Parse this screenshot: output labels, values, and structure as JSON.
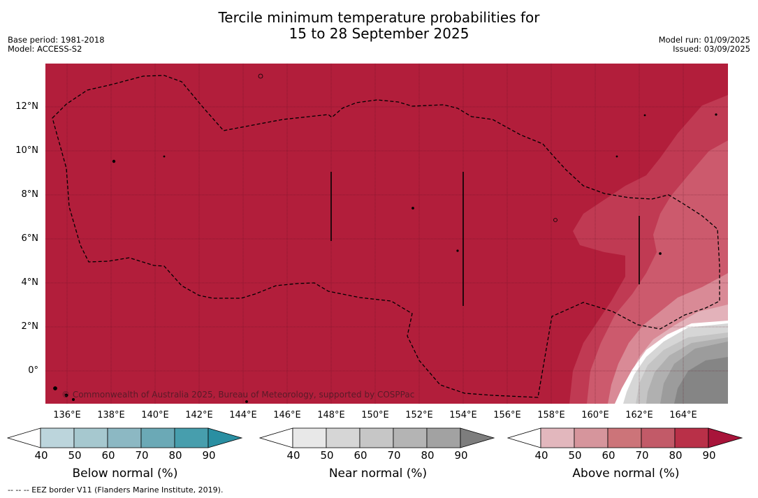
{
  "header": {
    "title_line1": "Tercile minimum temperature probabilities for",
    "title_line2": "15 to 28 September 2025",
    "base_period": "Base period: 1981-2018",
    "model": "Model: ACCESS-S2",
    "model_run": "Model run: 01/09/2025",
    "issued": "Issued: 03/09/2025"
  },
  "map": {
    "lat_labels": [
      "12°N",
      "10°N",
      "8°N",
      "6°N",
      "4°N",
      "2°N",
      "0°"
    ],
    "lon_labels": [
      "136°E",
      "138°E",
      "140°E",
      "142°E",
      "144°E",
      "146°E",
      "148°E",
      "150°E",
      "152°E",
      "154°E",
      "156°E",
      "158°E",
      "160°E",
      "162°E",
      "164°E"
    ],
    "copyright": "© Commonwealth of Australia 2025, Bureau of Meteorology, supported by COSPPac",
    "colors": {
      "above_90": "#b21e3b",
      "above_80": "#c03a53",
      "above_70": "#cc5a6d",
      "above_60": "#d98a96",
      "above_50": "#e3b2ba",
      "near_40": "#e9e9e9",
      "near_50": "#d6d6d6",
      "near_60": "#c4c4c4",
      "near_70": "#b0b0b0",
      "near_80": "#9c9c9c",
      "near_90": "#858585"
    }
  },
  "colorbars": [
    {
      "title": "Below normal (%)",
      "ticks": [
        "40",
        "50",
        "60",
        "70",
        "80",
        "90"
      ],
      "colors": [
        "#ffffff",
        "#bcd5dc",
        "#a6c8cf",
        "#8cb8c3",
        "#6ba9b6",
        "#479ead",
        "#2a8fa2"
      ]
    },
    {
      "title": "Near normal (%)",
      "ticks": [
        "40",
        "50",
        "60",
        "70",
        "80",
        "90"
      ],
      "colors": [
        "#ffffff",
        "#e8e8e8",
        "#d6d6d6",
        "#c6c6c6",
        "#b4b4b4",
        "#a2a2a2",
        "#7d7d7d"
      ]
    },
    {
      "title": "Above normal (%)",
      "ticks": [
        "40",
        "50",
        "60",
        "70",
        "80",
        "90"
      ],
      "colors": [
        "#ffffff",
        "#e2b7bd",
        "#d6959c",
        "#cc7479",
        "#c25a68",
        "#b93048",
        "#a8143a"
      ]
    }
  ],
  "footnote": "--  --  -- EEZ border V11 (Flanders Marine Institute, 2019)."
}
